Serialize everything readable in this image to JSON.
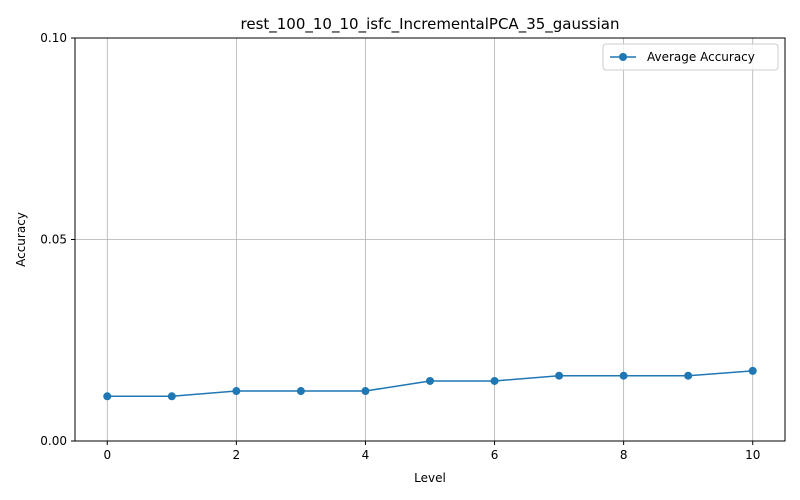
{
  "chart_data": {
    "type": "line",
    "title": "rest_100_10_10_isfc_IncrementalPCA_35_gaussian",
    "xlabel": "Level",
    "ylabel": "Accuracy",
    "xlim": [
      -0.5,
      10.5
    ],
    "ylim": [
      0.0,
      0.1
    ],
    "xticks": [
      0,
      2,
      4,
      6,
      8,
      10
    ],
    "xtick_labels": [
      "0",
      "2",
      "4",
      "6",
      "8",
      "10"
    ],
    "yticks": [
      0.0,
      0.05,
      0.1
    ],
    "ytick_labels": [
      "0.00",
      "0.05",
      "0.10"
    ],
    "grid": true,
    "legend_position": "top-right",
    "series": [
      {
        "name": "Average Accuracy",
        "color": "#1f77b4",
        "marker": "circle",
        "x": [
          0,
          1,
          2,
          3,
          4,
          5,
          6,
          7,
          8,
          9,
          10
        ],
        "values": [
          0.0111,
          0.0111,
          0.0124,
          0.0124,
          0.0124,
          0.0149,
          0.0149,
          0.0162,
          0.0162,
          0.0162,
          0.0174
        ]
      }
    ]
  }
}
